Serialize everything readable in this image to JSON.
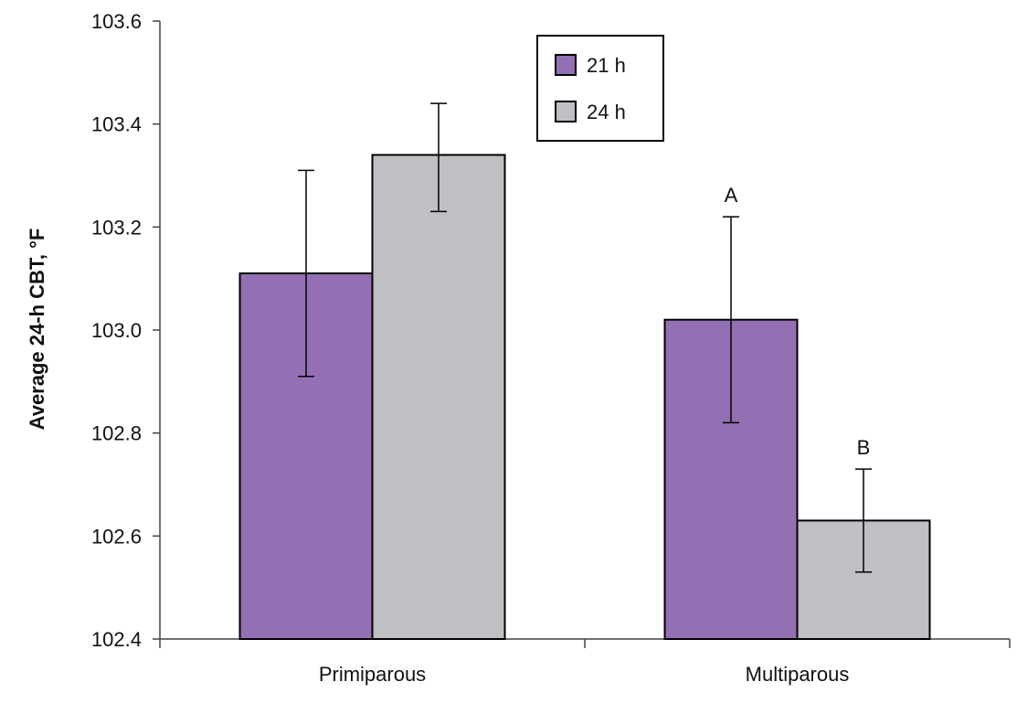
{
  "chart_data": {
    "type": "bar",
    "title": "",
    "xlabel": "",
    "ylabel": "Average 24-h CBT, °F",
    "ylim": [
      102.4,
      103.6
    ],
    "yticks": [
      "102.4",
      "102.6",
      "102.8",
      "103.0",
      "103.2",
      "103.4",
      "103.6"
    ],
    "categories": [
      "Primiparous",
      "Multiparous"
    ],
    "series": [
      {
        "name": "21 h",
        "color": "#9370b3",
        "values": [
          103.11,
          103.02
        ],
        "error_low": [
          102.91,
          102.82
        ],
        "error_high": [
          103.31,
          103.22
        ],
        "labels": [
          "",
          "A"
        ]
      },
      {
        "name": "24 h",
        "color": "#bfc0c3",
        "values": [
          103.34,
          102.63
        ],
        "error_low": [
          103.23,
          102.53
        ],
        "error_high": [
          103.44,
          102.73
        ],
        "labels": [
          "",
          "B"
        ]
      }
    ],
    "legend": {
      "position": "top-center",
      "entries": [
        "21 h",
        "24 h"
      ]
    },
    "grid": false
  }
}
